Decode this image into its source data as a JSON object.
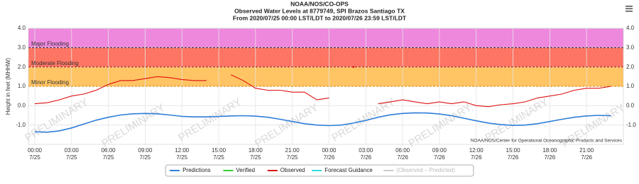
{
  "chart_data": {
    "type": "line",
    "title": [
      "NOAA/NOS/CO-OPS",
      "Observed Water Levels at 8779749, SPI Brazos Santiago TX",
      "From 2020/07/25 00:00 LST/LDT to 2020/07/26 23:59 LST/LDT"
    ],
    "ylabel": "Height in feet (MHHW)",
    "credit": "NOAA/NOS/Center for Operational Oceanographic Products and Services",
    "watermark": "PRELIMINARY",
    "xlim": [
      0,
      48
    ],
    "xticks": [
      {
        "value": 0,
        "label": "00:00"
      },
      {
        "value": 3,
        "label": "03:00"
      },
      {
        "value": 6,
        "label": "06:00"
      },
      {
        "value": 9,
        "label": "09:00"
      },
      {
        "value": 12,
        "label": "12:00"
      },
      {
        "value": 15,
        "label": "15:00"
      },
      {
        "value": 18,
        "label": "18:00"
      },
      {
        "value": 21,
        "label": "21:00"
      },
      {
        "value": 24,
        "label": "00:00"
      },
      {
        "value": 27,
        "label": "03:00"
      },
      {
        "value": 30,
        "label": "06:00"
      },
      {
        "value": 33,
        "label": "09:00"
      },
      {
        "value": 36,
        "label": "12:00"
      },
      {
        "value": 39,
        "label": "15:00"
      },
      {
        "value": 42,
        "label": "18:00"
      },
      {
        "value": 45,
        "label": "21:00"
      }
    ],
    "xtick_dates": [
      "7/25",
      "7/25",
      "7/25",
      "7/25",
      "7/25",
      "7/25",
      "7/25",
      "7/25",
      "7/26",
      "7/26",
      "7/26",
      "7/26",
      "7/26",
      "7/26",
      "7/26",
      "7/26"
    ],
    "ylim": [
      -2,
      4
    ],
    "yticks": [
      {
        "value": -1,
        "label": "-1.0"
      },
      {
        "value": 0,
        "label": "0.0"
      },
      {
        "value": 1,
        "label": "1.0"
      },
      {
        "value": 2,
        "label": "2.0"
      },
      {
        "value": 3,
        "label": "3.0"
      },
      {
        "value": 4,
        "label": "4.0"
      }
    ],
    "grid": true,
    "thresholds": [
      {
        "name": "Major Flooding",
        "value": 3,
        "color": "#ee88dd",
        "line": "#222222"
      },
      {
        "name": "Moderate Flooding",
        "value": 2,
        "color": "#ff7563",
        "line": "#aa1111"
      },
      {
        "name": "Minor Flooding",
        "value": 1,
        "color": "#ffc463",
        "line": "#dd8800"
      }
    ],
    "x": [
      0,
      1,
      2,
      3,
      4,
      5,
      6,
      7,
      8,
      9,
      10,
      11,
      12,
      13,
      14,
      15,
      16,
      17,
      18,
      19,
      20,
      21,
      22,
      23,
      24,
      25,
      26,
      27,
      28,
      29,
      30,
      31,
      32,
      33,
      34,
      35,
      36,
      37,
      38,
      39,
      40,
      41,
      42,
      43,
      44,
      45,
      46,
      47
    ],
    "series": [
      {
        "name": "Predictions",
        "color": "#2f7ed8",
        "values": [
          -1.35,
          -1.37,
          -1.3,
          -1.15,
          -0.95,
          -0.75,
          -0.6,
          -0.48,
          -0.42,
          -0.4,
          -0.42,
          -0.48,
          -0.55,
          -0.58,
          -0.58,
          -0.56,
          -0.53,
          -0.52,
          -0.54,
          -0.6,
          -0.7,
          -0.82,
          -0.93,
          -1.0,
          -1.03,
          -1.0,
          -0.9,
          -0.76,
          -0.6,
          -0.47,
          -0.4,
          -0.37,
          -0.38,
          -0.43,
          -0.52,
          -0.65,
          -0.78,
          -0.9,
          -0.98,
          -1.02,
          -1.0,
          -0.93,
          -0.82,
          -0.7,
          -0.6,
          -0.53,
          -0.5,
          -0.52
        ]
      },
      {
        "name": "Verified",
        "color": "#33cc33",
        "values": [
          null,
          null,
          null,
          null,
          null,
          null,
          null,
          null,
          null,
          null,
          null,
          null,
          null,
          null,
          null,
          null,
          null,
          null,
          null,
          null,
          null,
          null,
          null,
          null,
          null,
          null,
          null,
          null,
          null,
          null,
          null,
          null,
          null,
          null,
          null,
          null,
          null,
          null,
          null,
          null,
          null,
          null,
          null,
          null,
          null,
          null,
          null,
          null
        ]
      },
      {
        "name": "Observed",
        "color": "#dd1111",
        "values": [
          0.1,
          0.15,
          0.3,
          0.5,
          0.6,
          0.8,
          1.1,
          1.3,
          1.3,
          1.4,
          1.5,
          1.45,
          1.35,
          1.3,
          1.3,
          null,
          1.6,
          1.3,
          0.9,
          0.8,
          0.8,
          0.7,
          0.7,
          0.3,
          0.4,
          null,
          2.0,
          null,
          0.1,
          0.2,
          0.3,
          0.2,
          0.1,
          0.2,
          0.1,
          0.2,
          0.0,
          -0.05,
          0.05,
          0.1,
          0.2,
          0.4,
          0.5,
          0.6,
          0.8,
          0.9,
          0.9,
          1.0
        ]
      },
      {
        "name": "Forecast Guidance",
        "color": "#33dddd",
        "values": [
          null,
          null,
          null,
          null,
          null,
          null,
          null,
          null,
          null,
          null,
          null,
          null,
          null,
          null,
          null,
          null,
          null,
          null,
          null,
          null,
          null,
          null,
          null,
          null,
          null,
          null,
          null,
          null,
          null,
          null,
          null,
          null,
          null,
          null,
          null,
          null,
          null,
          null,
          null,
          null,
          null,
          null,
          null,
          null,
          null,
          null,
          null,
          null
        ]
      },
      {
        "name": "(Observed – Predicted)",
        "color": "#cccccc",
        "hidden": true,
        "values": [
          null,
          null,
          null,
          null,
          null,
          null,
          null,
          null,
          null,
          null,
          null,
          null,
          null,
          null,
          null,
          null,
          null,
          null,
          null,
          null,
          null,
          null,
          null,
          null,
          null,
          null,
          null,
          null,
          null,
          null,
          null,
          null,
          null,
          null,
          null,
          null,
          null,
          null,
          null,
          null,
          null,
          null,
          null,
          null,
          null,
          null,
          null,
          null
        ]
      }
    ]
  }
}
